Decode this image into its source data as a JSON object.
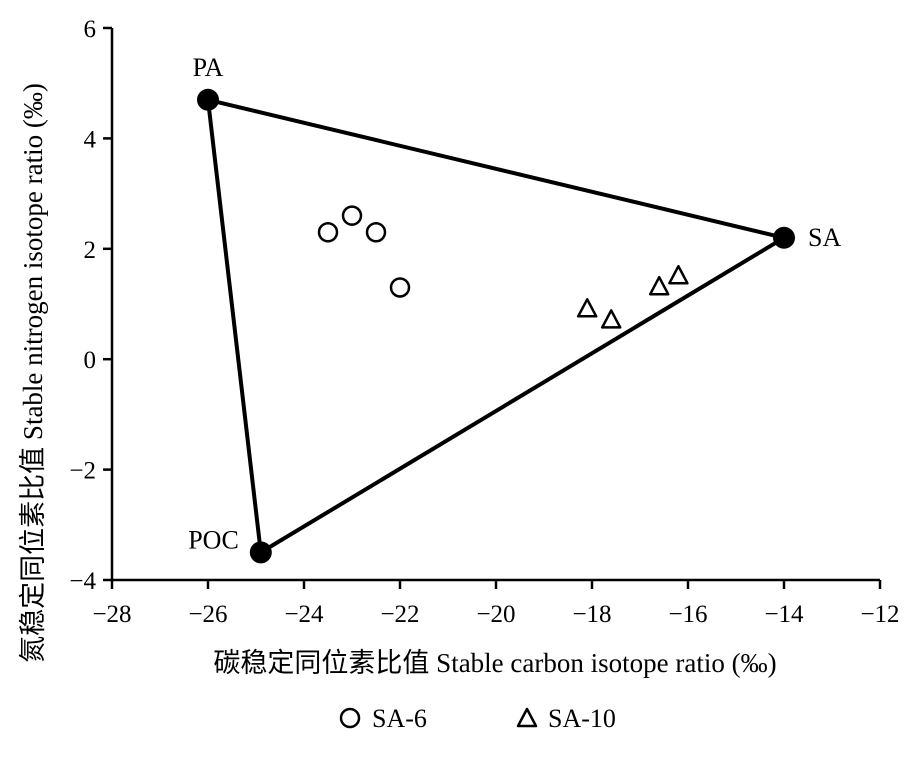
{
  "chart_data": {
    "type": "scatter",
    "xlabel": "碳稳定同位素比值 Stable carbon isotope ratio (‰)",
    "ylabel": "氮稳定同位素比值 Stable nitrogen isotope ratio (‰)",
    "xlim": [
      -28,
      -12
    ],
    "ylim": [
      -4,
      6
    ],
    "xticks": [
      -28,
      -26,
      -24,
      -22,
      -20,
      -18,
      -16,
      -14,
      -12
    ],
    "yticks": [
      -4,
      -2,
      0,
      2,
      4,
      6
    ],
    "grid": false,
    "legend_position": "bottom",
    "sources": [
      {
        "label": "PA",
        "x": -26.0,
        "y": 4.7
      },
      {
        "label": "SA",
        "x": -14.0,
        "y": 2.2
      },
      {
        "label": "POC",
        "x": -24.9,
        "y": -3.5
      }
    ],
    "series": [
      {
        "name": "SA-6",
        "marker": "circle",
        "points": [
          {
            "x": -23.5,
            "y": 2.3
          },
          {
            "x": -23.0,
            "y": 2.6
          },
          {
            "x": -22.5,
            "y": 2.3
          },
          {
            "x": -22.0,
            "y": 1.3
          }
        ]
      },
      {
        "name": "SA-10",
        "marker": "triangle",
        "points": [
          {
            "x": -18.1,
            "y": 0.9
          },
          {
            "x": -17.6,
            "y": 0.7
          },
          {
            "x": -16.6,
            "y": 1.3
          },
          {
            "x": -16.2,
            "y": 1.5
          }
        ]
      }
    ]
  }
}
